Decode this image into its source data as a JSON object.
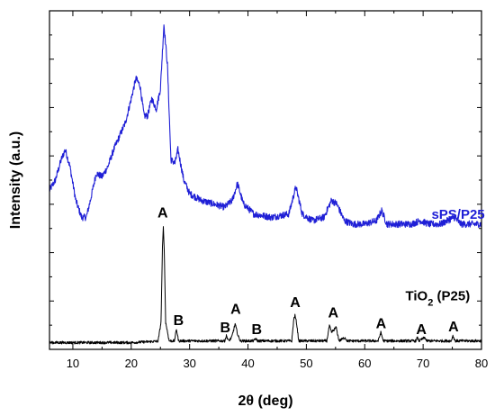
{
  "chart_data": {
    "type": "line",
    "xlabel": "2θ (deg)",
    "ylabel": "Intensity (a.u.)",
    "xlim": [
      6,
      80
    ],
    "ylim": [
      0,
      100
    ],
    "x_ticks": [
      10,
      20,
      30,
      40,
      50,
      60,
      70,
      80
    ],
    "y_tick_labels_shown": false,
    "grid": false,
    "series": [
      {
        "name": "sPS/P25",
        "color": "#1f1fd6",
        "noise": 1.0,
        "points": [
          [
            6,
            47
          ],
          [
            7,
            50
          ],
          [
            8,
            56
          ],
          [
            8.7,
            59
          ],
          [
            9.5,
            54
          ],
          [
            10.5,
            44
          ],
          [
            11.5,
            39
          ],
          [
            12.3,
            39
          ],
          [
            13,
            44
          ],
          [
            14,
            52
          ],
          [
            15,
            51
          ],
          [
            16,
            54
          ],
          [
            17,
            59
          ],
          [
            18,
            63
          ],
          [
            19,
            67
          ],
          [
            20,
            74
          ],
          [
            20.8,
            80
          ],
          [
            21.5,
            78
          ],
          [
            22.2,
            69
          ],
          [
            22.8,
            69
          ],
          [
            23.5,
            74
          ],
          [
            24.3,
            71
          ],
          [
            25,
            77
          ],
          [
            25.6,
            96
          ],
          [
            26.2,
            84
          ],
          [
            26.8,
            56
          ],
          [
            27.5,
            55
          ],
          [
            28,
            59
          ],
          [
            29,
            50
          ],
          [
            30,
            46
          ],
          [
            32,
            44
          ],
          [
            34,
            43
          ],
          [
            36,
            42
          ],
          [
            37.3,
            44
          ],
          [
            38.2,
            49
          ],
          [
            39.2,
            43
          ],
          [
            41,
            40
          ],
          [
            44,
            39
          ],
          [
            47,
            40
          ],
          [
            48.2,
            48
          ],
          [
            49.3,
            40
          ],
          [
            51,
            38
          ],
          [
            53,
            39
          ],
          [
            54.3,
            44
          ],
          [
            55.2,
            43
          ],
          [
            56.5,
            38
          ],
          [
            58,
            37
          ],
          [
            60,
            37
          ],
          [
            62,
            38
          ],
          [
            62.9,
            41
          ],
          [
            63.8,
            37
          ],
          [
            66,
            37
          ],
          [
            68,
            37
          ],
          [
            69.5,
            38
          ],
          [
            71,
            37
          ],
          [
            73,
            37
          ],
          [
            75.3,
            39
          ],
          [
            76.5,
            37
          ],
          [
            80,
            37
          ]
        ]
      },
      {
        "name": "TiO2 (P25)",
        "color": "#000000",
        "noise": 0.4,
        "points": [
          [
            6,
            2
          ],
          [
            20,
            2
          ],
          [
            24.6,
            2.4
          ],
          [
            25.1,
            8
          ],
          [
            25.35,
            30
          ],
          [
            25.5,
            36
          ],
          [
            25.65,
            30
          ],
          [
            25.9,
            8
          ],
          [
            26.5,
            2.5
          ],
          [
            27.4,
            2.5
          ],
          [
            27.75,
            6
          ],
          [
            28.1,
            2.5
          ],
          [
            36,
            2.5
          ],
          [
            36.3,
            4
          ],
          [
            36.7,
            2.5
          ],
          [
            37.2,
            3.5
          ],
          [
            37.8,
            7.5
          ],
          [
            38.3,
            4
          ],
          [
            38.7,
            2.5
          ],
          [
            41,
            2.5
          ],
          [
            41.3,
            3.2
          ],
          [
            41.6,
            2.5
          ],
          [
            47.5,
            2.5
          ],
          [
            47.85,
            9
          ],
          [
            48.05,
            10
          ],
          [
            48.3,
            8
          ],
          [
            48.7,
            2.5
          ],
          [
            53.5,
            2.5
          ],
          [
            53.95,
            7
          ],
          [
            54.3,
            5
          ],
          [
            55.1,
            6.5
          ],
          [
            55.6,
            2.5
          ],
          [
            56.6,
            3.5
          ],
          [
            57,
            2.5
          ],
          [
            62.3,
            2.5
          ],
          [
            62.75,
            5
          ],
          [
            63.2,
            2.5
          ],
          [
            68.8,
            2.5
          ],
          [
            69,
            3.5
          ],
          [
            69.3,
            2.5
          ],
          [
            70.3,
            3.5
          ],
          [
            70.6,
            2.5
          ],
          [
            74.8,
            2.5
          ],
          [
            75.1,
            4
          ],
          [
            75.5,
            2.5
          ],
          [
            80,
            2.5
          ]
        ]
      }
    ],
    "series_labels": [
      {
        "text_main": "sPS/P25",
        "x": 76,
        "y": 38.5,
        "color": "#1f1fd6"
      },
      {
        "text_main": "TiO",
        "text_sub": "2",
        "text_tail": " (P25)",
        "x": 72.5,
        "y": 14.5,
        "color": "#000000"
      }
    ],
    "peak_labels": [
      {
        "text": "A",
        "x": 25.4,
        "y": 39
      },
      {
        "text": "B",
        "x": 28.1,
        "y": 7.2
      },
      {
        "text": "B",
        "x": 36.1,
        "y": 5
      },
      {
        "text": "A",
        "x": 37.9,
        "y": 10.5
      },
      {
        "text": "B",
        "x": 41.5,
        "y": 4.5
      },
      {
        "text": "A",
        "x": 48.1,
        "y": 12.5
      },
      {
        "text": "A",
        "x": 54.6,
        "y": 9.5
      },
      {
        "text": "A",
        "x": 62.8,
        "y": 6.3
      },
      {
        "text": "A",
        "x": 69.7,
        "y": 4.5
      },
      {
        "text": "A",
        "x": 75.2,
        "y": 5.3
      }
    ]
  }
}
